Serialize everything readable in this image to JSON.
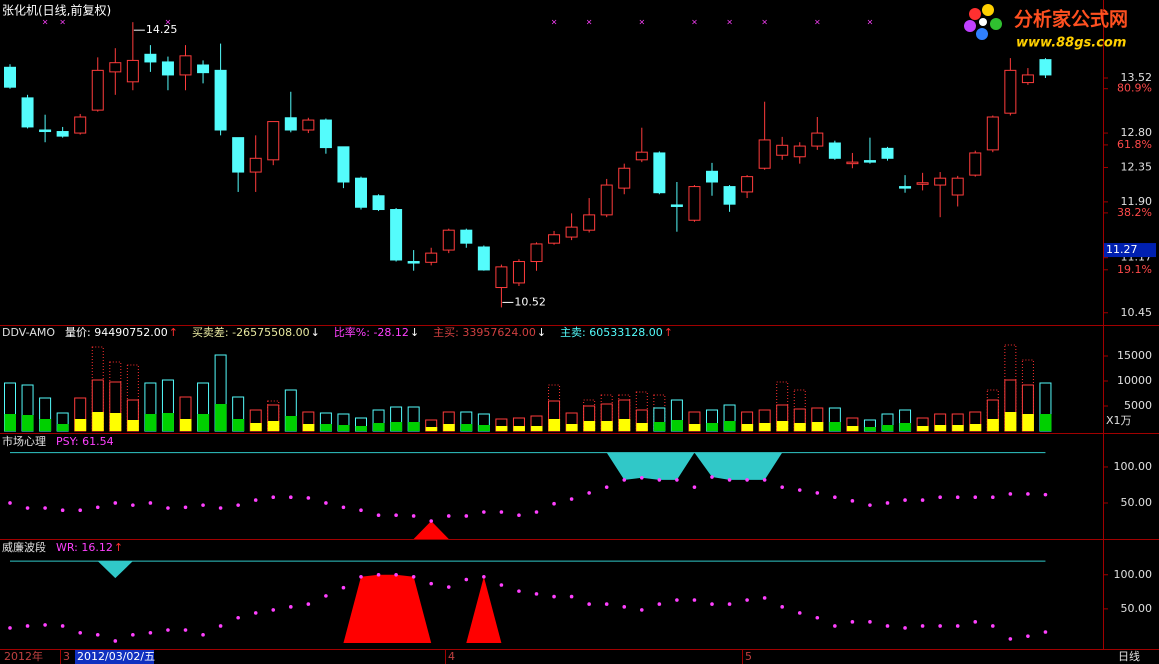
{
  "header": {
    "title": "张化机(日线,前复权)"
  },
  "watermark": {
    "name": "分析家公式网",
    "url": "www.88gs.com"
  },
  "footer": {
    "year": "2012年",
    "month_3": "3",
    "cursor_date": "2012/03/02/五",
    "month_4": "4",
    "month_5": "5",
    "period": "日线"
  },
  "chart_data": [
    {
      "type": "candlestick",
      "up_color": "#ff3c3c",
      "down_color": "#54fcfc",
      "open": [
        13.66,
        13.26,
        12.84,
        12.82,
        12.8,
        13.1,
        13.6,
        13.47,
        13.83,
        13.73,
        13.56,
        13.69,
        13.62,
        12.74,
        12.29,
        12.45,
        13.0,
        12.84,
        12.97,
        12.62,
        12.21,
        11.98,
        11.8,
        11.12,
        11.11,
        11.27,
        11.53,
        11.31,
        10.78,
        10.84,
        11.12,
        11.36,
        11.44,
        11.53,
        11.73,
        12.08,
        12.45,
        12.54,
        11.86,
        11.66,
        12.3,
        12.1,
        12.03,
        12.34,
        12.51,
        12.49,
        12.63,
        12.67,
        12.4,
        12.44,
        12.6,
        12.1,
        12.13,
        12.12,
        11.99,
        12.25,
        12.58,
        13.06,
        13.46,
        13.76
      ],
      "high": [
        13.7,
        13.3,
        13.04,
        12.88,
        13.05,
        13.79,
        13.91,
        14.25,
        13.95,
        13.8,
        13.95,
        13.75,
        13.97,
        12.74,
        12.77,
        12.95,
        13.34,
        13.0,
        12.99,
        12.62,
        12.23,
        12.0,
        11.82,
        11.27,
        11.3,
        11.55,
        11.55,
        11.33,
        11.08,
        11.15,
        11.37,
        11.52,
        11.75,
        11.95,
        12.2,
        12.4,
        12.87,
        12.56,
        12.16,
        12.12,
        12.41,
        12.12,
        12.25,
        13.21,
        12.75,
        12.68,
        13.01,
        12.7,
        12.54,
        12.74,
        12.62,
        12.25,
        12.28,
        12.29,
        12.24,
        12.57,
        13.03,
        13.78,
        13.65,
        13.78
      ],
      "low": [
        13.38,
        12.86,
        12.68,
        12.74,
        12.78,
        13.08,
        13.3,
        13.36,
        13.6,
        13.36,
        13.36,
        13.45,
        12.77,
        12.03,
        12.03,
        12.38,
        12.81,
        12.8,
        12.53,
        12.08,
        11.8,
        11.78,
        11.12,
        11.0,
        11.07,
        11.23,
        11.3,
        11.0,
        10.52,
        10.8,
        11.0,
        11.34,
        11.4,
        11.5,
        11.7,
        12.0,
        12.42,
        12.0,
        11.51,
        11.64,
        11.98,
        11.77,
        11.95,
        12.32,
        12.45,
        12.4,
        12.58,
        12.45,
        12.34,
        12.4,
        12.44,
        12.02,
        12.05,
        11.7,
        11.84,
        12.23,
        12.55,
        13.03,
        13.43,
        13.52
      ],
      "close": [
        13.4,
        12.88,
        12.82,
        12.76,
        13.01,
        13.62,
        13.72,
        13.75,
        13.73,
        13.56,
        13.81,
        13.59,
        12.84,
        12.29,
        12.47,
        12.95,
        12.84,
        12.97,
        12.61,
        12.16,
        11.83,
        11.8,
        11.14,
        11.1,
        11.23,
        11.53,
        11.36,
        11.01,
        11.05,
        11.12,
        11.35,
        11.47,
        11.57,
        11.73,
        12.12,
        12.34,
        12.55,
        12.02,
        11.84,
        12.1,
        12.16,
        11.87,
        12.23,
        12.71,
        12.64,
        12.63,
        12.8,
        12.47,
        12.42,
        12.42,
        12.47,
        12.08,
        12.15,
        12.21,
        12.21,
        12.54,
        13.01,
        13.62,
        13.56,
        13.56
      ],
      "ylim": [
        10.29,
        14.54
      ],
      "yticks": [
        13.52,
        {
          "value": 12.8,
          "label": "12.80"
        },
        12.35,
        {
          "value": 11.9,
          "label": "11.90"
        },
        11.17,
        10.45
      ],
      "fib_ticks": [
        {
          "value": 13.38,
          "label": "80.9%"
        },
        {
          "value": 12.645,
          "label": "61.8%"
        },
        {
          "value": 11.756,
          "label": "38.2%"
        },
        {
          "value": 11.012,
          "label": "19.1%"
        }
      ],
      "current_price": 11.27,
      "annotations": [
        {
          "label": "14.25",
          "value": 14.25,
          "index": 7
        },
        {
          "label": "10.52",
          "value": 10.52,
          "index": 28
        }
      ],
      "signals": [
        2,
        3,
        9,
        31,
        33,
        36,
        39,
        41,
        43,
        46,
        49
      ],
      "signal_color": "#ff40ff"
    },
    {
      "type": "volume",
      "title": "DDV-AMO",
      "legend": [
        {
          "label": "量价: 94490752.00",
          "arrow": "↑",
          "color": "#ffffff",
          "arrow_color": "#ff3030"
        },
        {
          "label": "买卖差: -26575508.00",
          "arrow": "↓",
          "color": "#e8e8a0",
          "arrow_color": "#ffffff"
        },
        {
          "label": "比率%: -28.12",
          "arrow": "↓",
          "color": "#ff40ff",
          "arrow_color": "#ffffff"
        },
        {
          "label": "主买: 33957624.00",
          "arrow": "↓",
          "color": "#d04040",
          "arrow_color": "#ffffff"
        },
        {
          "label": "主卖: 60533128.00",
          "arrow": "↑",
          "color": "#54fcfc",
          "arrow_color": "#ff3030"
        }
      ],
      "unit": "X1万",
      "up_color": "#ff3c3c",
      "down_color": "#54fcfc",
      "up_fill": "#ffff00",
      "down_fill": "#00d000",
      "values": [
        9600,
        9200,
        6600,
        3600,
        6600,
        10200,
        9800,
        6200,
        9600,
        10200,
        6800,
        9600,
        15200,
        6800,
        4200,
        5200,
        8200,
        3800,
        3600,
        3400,
        2600,
        4200,
        4800,
        4800,
        2200,
        3800,
        3800,
        3400,
        2400,
        2600,
        3000,
        6000,
        3600,
        5000,
        5400,
        6200,
        4200,
        4600,
        6200,
        3800,
        4200,
        5200,
        3800,
        4200,
        5200,
        4400,
        4600,
        4600,
        2600,
        2200,
        3400,
        4200,
        2600,
        3400,
        3400,
        3800,
        6200,
        10200,
        9200,
        9600
      ],
      "active": [
        3400,
        3200,
        2400,
        1400,
        2400,
        3800,
        3600,
        2200,
        3400,
        3600,
        2400,
        3400,
        5400,
        2400,
        1600,
        2000,
        3000,
        1400,
        1400,
        1200,
        1000,
        1600,
        1800,
        1800,
        800,
        1400,
        1400,
        1200,
        1000,
        1000,
        1000,
        2400,
        1400,
        2000,
        2000,
        2400,
        1600,
        1800,
        2200,
        1400,
        1600,
        2000,
        1400,
        1600,
        2000,
        1600,
        1800,
        1800,
        1000,
        800,
        1200,
        1600,
        1000,
        1200,
        1200,
        1400,
        2400,
        3800,
        3400,
        3400
      ],
      "peak": [
        null,
        null,
        null,
        null,
        null,
        16800,
        13800,
        13200,
        null,
        null,
        null,
        null,
        null,
        null,
        null,
        6000,
        null,
        null,
        null,
        null,
        null,
        null,
        null,
        null,
        null,
        null,
        null,
        null,
        null,
        null,
        null,
        9200,
        null,
        6200,
        7200,
        7200,
        7800,
        7200,
        null,
        null,
        null,
        null,
        null,
        null,
        9800,
        8200,
        null,
        null,
        null,
        null,
        null,
        null,
        null,
        null,
        null,
        null,
        8200,
        17200,
        14200,
        null
      ],
      "ylim": [
        0,
        20800
      ],
      "yticks": [
        15000,
        10000,
        5000
      ]
    },
    {
      "type": "dots",
      "title": "市场心理",
      "legend": [
        {
          "label": "PSY: 61.54",
          "arrow": "",
          "color": "#ff40ff",
          "arrow_color": "#ff3030"
        }
      ],
      "color": "#ff40ff",
      "ref_color": "#30c8c8",
      "top_fill_color": "#30c8c8",
      "bottom_fill_color": "#ff0000",
      "values": [
        50,
        43,
        43,
        40,
        40,
        44,
        50,
        47,
        50,
        43,
        44,
        47,
        43,
        47,
        54,
        58,
        58,
        57,
        50,
        44,
        40,
        33,
        33,
        32,
        25,
        32,
        32,
        37.5,
        37.5,
        33,
        37.5,
        49,
        55.5,
        64,
        72,
        82,
        85,
        82,
        82,
        72,
        86,
        82,
        82,
        82,
        72,
        68,
        64,
        58,
        53,
        47,
        50,
        54,
        54,
        58,
        58,
        58,
        58,
        62.5,
        62.5,
        61.54
      ],
      "top_fill": [
        null,
        null,
        null,
        null,
        null,
        null,
        null,
        null,
        null,
        null,
        null,
        null,
        null,
        null,
        null,
        null,
        null,
        null,
        null,
        null,
        null,
        null,
        null,
        null,
        null,
        null,
        null,
        null,
        null,
        null,
        null,
        null,
        null,
        null,
        null,
        82,
        85,
        82,
        82,
        null,
        86,
        82,
        82,
        82,
        null,
        null,
        null,
        null,
        null,
        null,
        null,
        null,
        null,
        null,
        null,
        null,
        null,
        null,
        null,
        null
      ],
      "bottom_fill": [
        null,
        null,
        null,
        null,
        null,
        null,
        null,
        null,
        null,
        null,
        null,
        null,
        null,
        null,
        null,
        null,
        null,
        null,
        null,
        null,
        null,
        null,
        null,
        null,
        25,
        null,
        null,
        null,
        null,
        null,
        null,
        null,
        null,
        null,
        null,
        null,
        null,
        null,
        null,
        null,
        null,
        null,
        null,
        null,
        null,
        null,
        null,
        null,
        null,
        null,
        null,
        null,
        null,
        null,
        null,
        null,
        null,
        null,
        null,
        null
      ],
      "ref_line": 120,
      "ylim": [
        0,
        143
      ],
      "yticks": [
        {
          "value": 100,
          "label": "100.00"
        },
        {
          "value": 50,
          "label": "50.00"
        }
      ]
    },
    {
      "type": "dots",
      "title": "威廉波段",
      "legend": [
        {
          "label": "WR: 16.12",
          "arrow": "↑",
          "color": "#ff40ff",
          "arrow_color": "#ff3030"
        }
      ],
      "color": "#ff40ff",
      "ref_color": "#30c8c8",
      "top_fill_color": "#30c8c8",
      "bottom_fill_color": "#ff0000",
      "values": [
        22,
        25,
        26.5,
        25,
        15,
        12,
        3,
        12,
        15,
        19,
        19,
        12,
        25,
        37,
        44,
        48.5,
        53,
        57,
        69,
        81,
        97,
        100,
        100,
        97,
        87,
        82,
        93,
        97,
        85,
        76,
        72,
        68,
        68,
        57,
        57,
        53,
        48.5,
        57,
        63,
        63,
        57,
        57,
        63,
        66,
        53,
        44,
        37,
        25,
        31,
        31,
        25,
        22,
        25,
        25,
        25,
        31,
        25,
        6,
        10,
        16.12
      ],
      "top_fill": [
        null,
        null,
        null,
        null,
        null,
        null,
        95,
        null,
        null,
        null,
        null,
        null,
        null,
        null,
        null,
        null,
        null,
        null,
        null,
        null,
        null,
        null,
        null,
        null,
        null,
        null,
        null,
        null,
        null,
        null,
        null,
        null,
        null,
        null,
        null,
        null,
        null,
        null,
        null,
        null,
        null,
        null,
        null,
        null,
        null,
        null,
        null,
        null,
        null,
        null,
        null,
        null,
        null,
        null,
        null,
        null,
        null,
        null,
        null,
        null
      ],
      "bottom_fill": [
        null,
        null,
        null,
        null,
        null,
        null,
        null,
        null,
        null,
        null,
        null,
        null,
        null,
        null,
        null,
        null,
        null,
        null,
        null,
        null,
        97,
        100,
        100,
        97,
        null,
        null,
        null,
        97,
        null,
        null,
        null,
        null,
        null,
        null,
        null,
        null,
        null,
        null,
        null,
        null,
        null,
        null,
        null,
        null,
        null,
        null,
        null,
        null,
        null,
        null,
        null,
        null,
        null,
        null,
        null,
        null,
        null,
        null,
        null,
        null
      ],
      "ref_line": 120,
      "ylim": [
        0,
        148
      ],
      "yticks": [
        {
          "value": 100,
          "label": "100.00"
        },
        {
          "value": 50,
          "label": "50.00"
        }
      ]
    }
  ]
}
